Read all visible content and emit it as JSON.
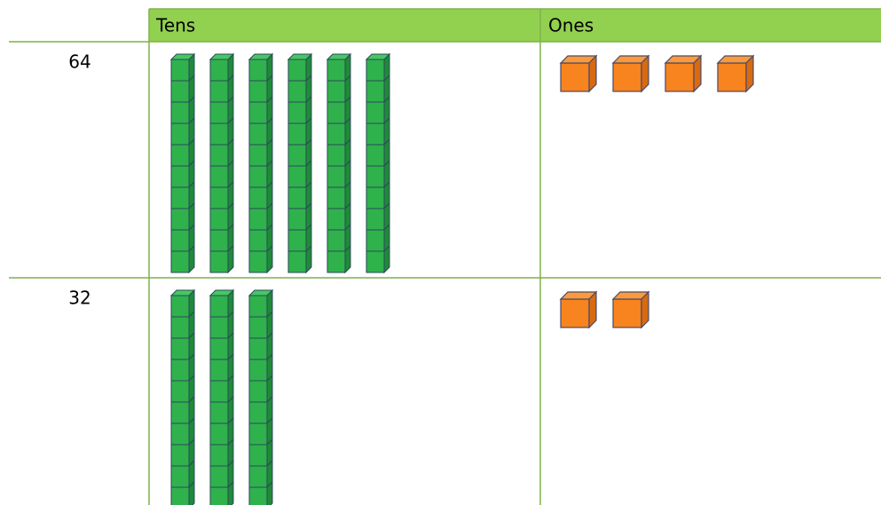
{
  "header": {
    "tens": "Tens",
    "ones": "Ones"
  },
  "rows": [
    {
      "number": "64",
      "rods": 6,
      "cubes": 4
    },
    {
      "number": "32",
      "rods": 3,
      "cubes": 2
    }
  ]
}
